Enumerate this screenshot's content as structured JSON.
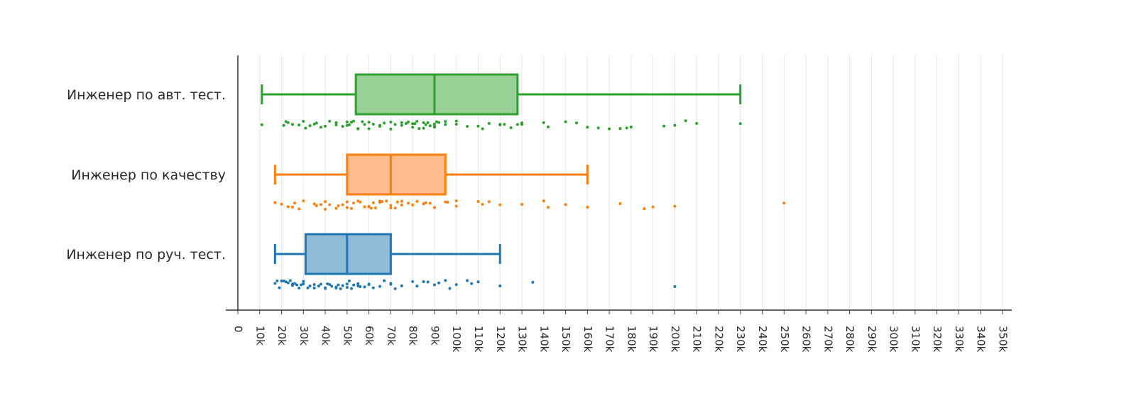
{
  "chart_data": {
    "type": "box",
    "orientation": "horizontal",
    "xlim": [
      0,
      350000
    ],
    "x_tick_step": 10000,
    "x_tick_labels": [
      "0",
      "10k",
      "20k",
      "30k",
      "40k",
      "50k",
      "60k",
      "70k",
      "80k",
      "90k",
      "100k",
      "110k",
      "120k",
      "130k",
      "140k",
      "150k",
      "160k",
      "170k",
      "180k",
      "190k",
      "200k",
      "210k",
      "220k",
      "230k",
      "240k",
      "250k",
      "260k",
      "270k",
      "280k",
      "290k",
      "300k",
      "310k",
      "320k",
      "330k",
      "340k",
      "350k"
    ],
    "grid": "vertical",
    "legend": "none",
    "boxpoints": "all",
    "series": [
      {
        "name": "Инженер по авт. тест.",
        "color": "#2ca02c",
        "fill": "#98d095",
        "min": 11000,
        "q1": 54000,
        "median": 90000,
        "q3": 128000,
        "max": 230000,
        "points": [
          11000,
          21000,
          22000,
          23000,
          25000,
          28000,
          30000,
          31000,
          33000,
          35000,
          36000,
          38000,
          40000,
          42000,
          45000,
          45000,
          48000,
          50000,
          50000,
          51000,
          52000,
          53000,
          55000,
          55000,
          57000,
          58000,
          60000,
          60000,
          62000,
          65000,
          65000,
          67000,
          70000,
          70000,
          72000,
          75000,
          75000,
          77000,
          78000,
          80000,
          80000,
          81000,
          82000,
          83000,
          85000,
          85000,
          86000,
          87000,
          88000,
          90000,
          90000,
          90000,
          91000,
          92000,
          95000,
          95000,
          100000,
          100000,
          105000,
          110000,
          112000,
          115000,
          120000,
          120000,
          122000,
          125000,
          128000,
          130000,
          130000,
          140000,
          142000,
          150000,
          155000,
          160000,
          165000,
          170000,
          175000,
          178000,
          180000,
          195000,
          200000,
          205000,
          210000,
          230000
        ]
      },
      {
        "name": "Инженер по качеству",
        "color": "#ff7f0e",
        "fill": "#ffbb8c",
        "min": 17000,
        "q1": 50000,
        "median": 70000,
        "q3": 95000,
        "max": 160000,
        "points": [
          17000,
          20000,
          23000,
          25000,
          26000,
          28000,
          30000,
          35000,
          36000,
          38000,
          40000,
          40000,
          42000,
          45000,
          46000,
          48000,
          50000,
          50000,
          52000,
          53000,
          55000,
          56000,
          58000,
          60000,
          60000,
          61000,
          62000,
          63000,
          65000,
          65000,
          66000,
          68000,
          70000,
          70000,
          72000,
          73000,
          75000,
          75000,
          78000,
          80000,
          82000,
          85000,
          86000,
          88000,
          90000,
          95000,
          96000,
          100000,
          100000,
          110000,
          112000,
          115000,
          120000,
          130000,
          140000,
          142000,
          150000,
          160000,
          175000,
          186000,
          190000,
          200000,
          250000
        ]
      },
      {
        "name": "Инженер по руч. тест.",
        "color": "#1f77b4",
        "fill": "#8fbbd9",
        "min": 17000,
        "q1": 31000,
        "median": 50000,
        "q3": 70000,
        "max": 120000,
        "points": [
          17000,
          18000,
          19000,
          20000,
          21000,
          22000,
          23000,
          24000,
          25000,
          25000,
          26000,
          27000,
          28000,
          29000,
          30000,
          30000,
          32000,
          33000,
          35000,
          35000,
          37000,
          38000,
          40000,
          40000,
          41000,
          42000,
          43000,
          45000,
          45000,
          46000,
          47000,
          48000,
          50000,
          50000,
          51000,
          52000,
          53000,
          55000,
          55000,
          56000,
          58000,
          60000,
          60000,
          62000,
          65000,
          67000,
          70000,
          70000,
          72000,
          75000,
          80000,
          82000,
          85000,
          87000,
          90000,
          92000,
          95000,
          97000,
          100000,
          105000,
          107000,
          110000,
          120000,
          135000,
          200000
        ]
      }
    ]
  }
}
